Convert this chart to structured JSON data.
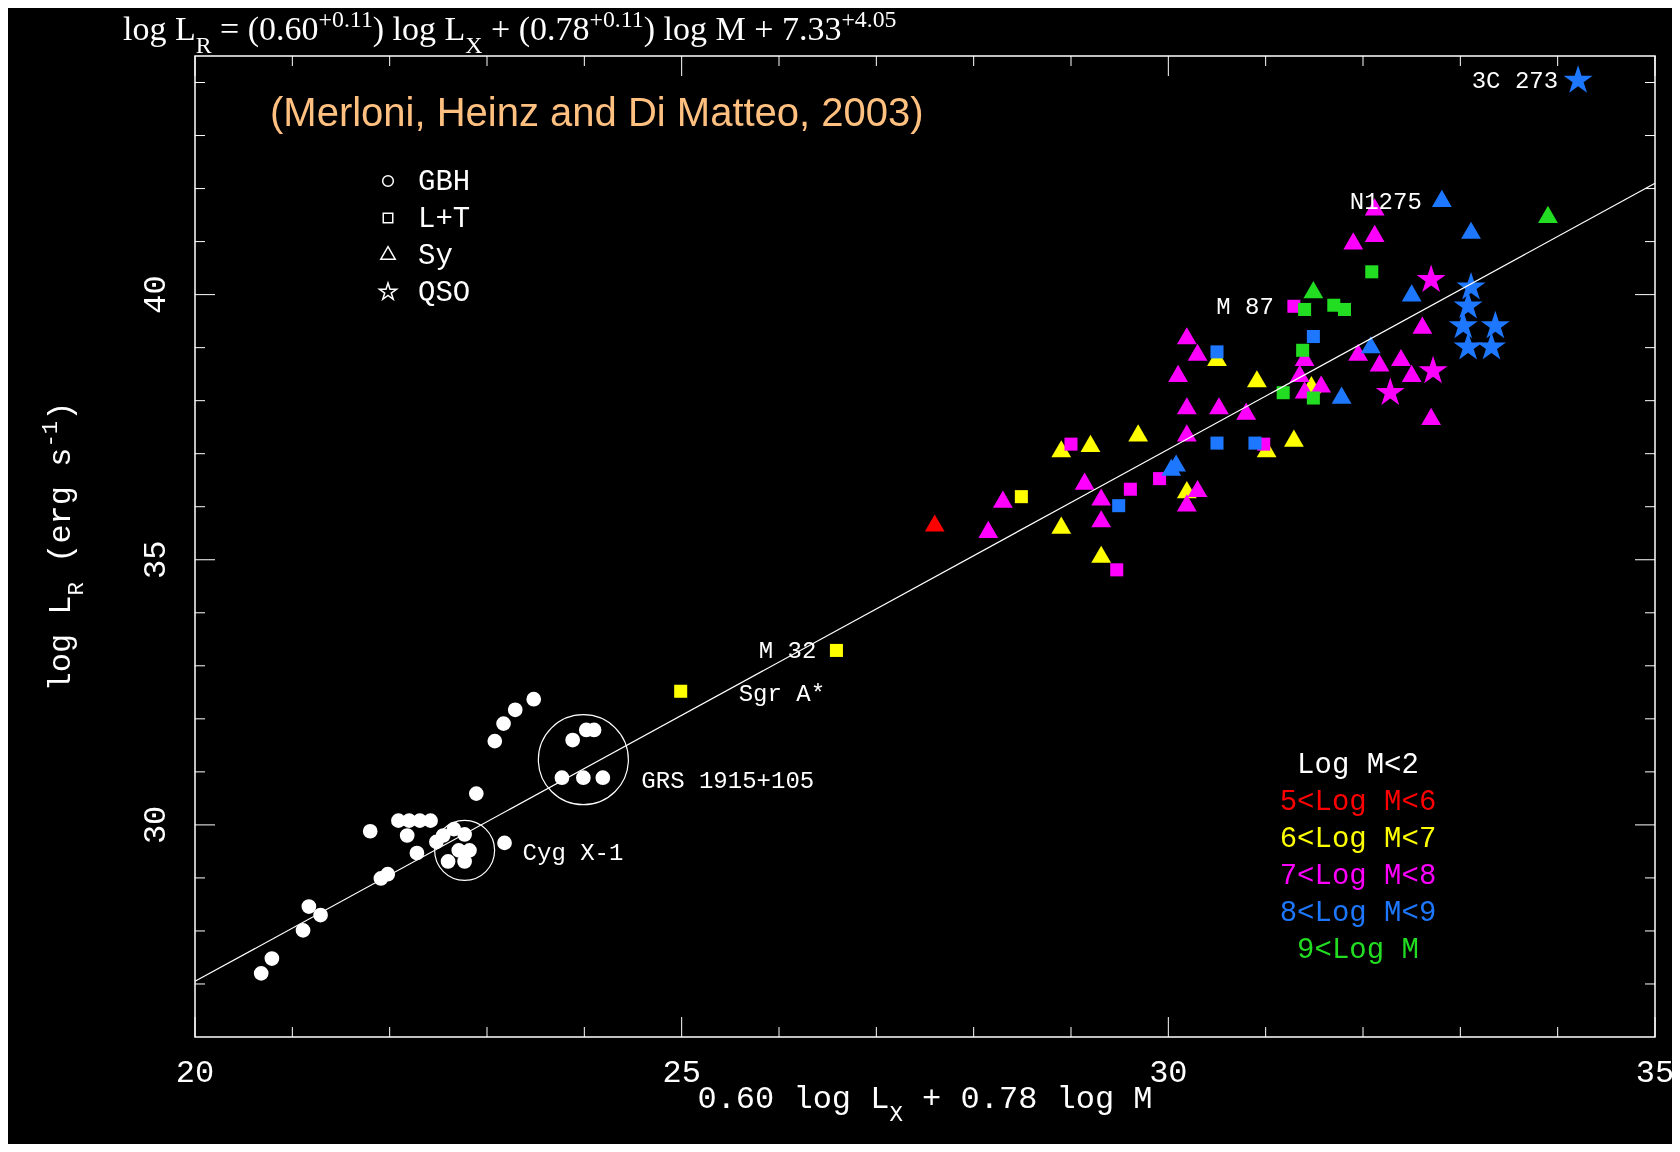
{
  "chart_data": {
    "type": "scatter",
    "title": "log L$_{R}$ = (0.60$^{+0.11}$) log L$_{X}$ + (0.78$^{+0.11}$) log M + 7.33$^{+4.05}$",
    "xlabel": "0.60 log L$_{X}$ + 0.78 log M",
    "ylabel": "log L$_{R}$ (erg s$^{-1}$)",
    "xlim": [
      20,
      35
    ],
    "ylim": [
      26,
      44.5
    ],
    "xticks": [
      20,
      {
        "value": 21,
        "label": null
      },
      {
        "value": 22,
        "label": null
      },
      {
        "value": 23,
        "label": null
      },
      {
        "value": 24,
        "label": null
      },
      25,
      {
        "value": 26,
        "label": null
      },
      {
        "value": 27,
        "label": null
      },
      {
        "value": 28,
        "label": null
      },
      {
        "value": 29,
        "label": null
      },
      30,
      {
        "value": 31,
        "label": null
      },
      {
        "value": 32,
        "label": null
      },
      {
        "value": 33,
        "label": null
      },
      {
        "value": 34,
        "label": null
      },
      35
    ],
    "yticks": [
      {
        "value": 27,
        "label": null
      },
      {
        "value": 28,
        "label": null
      },
      {
        "value": 29,
        "label": null
      },
      30,
      {
        "value": 31,
        "label": null
      },
      {
        "value": 32,
        "label": null
      },
      {
        "value": 33,
        "label": null
      },
      {
        "value": 34,
        "label": null
      },
      35,
      {
        "value": 36,
        "label": null
      },
      {
        "value": 37,
        "label": null
      },
      {
        "value": 38,
        "label": null
      },
      {
        "value": 39,
        "label": null
      },
      40,
      {
        "value": 41,
        "label": null
      },
      {
        "value": 42,
        "label": null
      },
      {
        "value": 43,
        "label": null
      },
      {
        "value": 44,
        "label": null
      }
    ],
    "legend": "bottom right",
    "series": [
      {
        "name": "Log M<2",
        "color": "#ffffff",
        "marker": "circle",
        "x": [
          20.68,
          20.79,
          21.11,
          21.17,
          21.29,
          21.8,
          21.91,
          21.98,
          22.09,
          22.2,
          22.31,
          22.42,
          22.18,
          22.28,
          22.48,
          22.55,
          22.66,
          22.77,
          22.71,
          22.82,
          22.6,
          22.77,
          22.89,
          23.18,
          23.08,
          23.17,
          23.29,
          23.48,
          23.77,
          23.99,
          24.19,
          23.88,
          24.02,
          24.1
        ],
        "values": [
          27.2,
          27.48,
          28.01,
          28.46,
          28.3,
          29.88,
          28.99,
          29.07,
          30.08,
          30.08,
          30.08,
          30.08,
          29.8,
          29.47,
          29.68,
          29.8,
          29.92,
          29.82,
          29.52,
          29.52,
          29.31,
          29.31,
          30.59,
          29.66,
          31.58,
          31.91,
          32.17,
          32.37,
          30.89,
          30.89,
          30.89,
          31.6,
          31.79,
          31.79
        ]
      },
      {
        "name": "5<Log M<6",
        "color": "#ff0000",
        "marker": "triangle",
        "x": [
          27.6
        ],
        "values": [
          35.64
        ]
      },
      {
        "name": "6<Log M<7",
        "color": "#ffff00",
        "marker": "triangle",
        "x": [
          28.9,
          28.9,
          29.2,
          29.69,
          29.31,
          30.19,
          30.5,
          30.91,
          31.01,
          31.29,
          31.47
        ],
        "values": [
          35.6,
          37.04,
          37.14,
          37.34,
          35.05,
          36.27,
          38.76,
          38.36,
          37.04,
          37.24,
          38.25
        ]
      },
      {
        "color": "#ffff00",
        "marker": "square",
        "x": [
          24.99,
          26.59,
          28.49
        ],
        "values": [
          32.52,
          33.29,
          36.19
        ]
      },
      {
        "name": "7<Log M<8",
        "color": "#ff00ff",
        "marker": "triangle",
        "x": [
          30.19,
          30.3,
          30.1,
          30.19,
          30.19,
          30.3,
          30.19,
          30.8,
          30.52,
          31.4,
          31.35,
          31.57,
          31.4,
          31.95,
          32.12,
          32.12,
          32.17,
          32.39,
          32.5,
          32.61,
          29.31,
          29.31,
          28.15,
          28.3,
          29.14,
          31.9,
          32.7
        ],
        "values": [
          39.17,
          38.86,
          38.46,
          37.85,
          36.02,
          36.29,
          37.34,
          37.75,
          37.85,
          38.76,
          38.46,
          38.26,
          38.15,
          38.86,
          41.6,
          41.1,
          38.66,
          38.76,
          38.46,
          39.37,
          36.13,
          35.72,
          35.52,
          36.09,
          36.43,
          40.96,
          37.65
        ]
      },
      {
        "color": "#ff00ff",
        "marker": "square",
        "x": [
          29.0,
          29.47,
          29.61,
          29.91,
          30.98,
          31.29
        ],
        "values": [
          37.18,
          34.81,
          36.33,
          36.53,
          37.18,
          39.78
        ]
      },
      {
        "color": "#ff00ff",
        "marker": "star",
        "x": [
          32.7,
          32.72,
          32.28
        ],
        "values": [
          40.28,
          38.56,
          38.15
        ]
      },
      {
        "name": "8<Log M<9",
        "color": "#1e78ff",
        "marker": "triangle",
        "x": [
          32.81,
          33.11,
          32.5,
          32.08,
          31.78,
          30.08,
          30.03
        ],
        "values": [
          41.76,
          41.16,
          39.98,
          39.0,
          38.05,
          36.77,
          36.69
        ]
      },
      {
        "color": "#1e78ff",
        "marker": "square",
        "x": [
          30.5,
          30.5,
          30.89,
          29.49,
          31.49
        ],
        "values": [
          38.92,
          37.2,
          37.2,
          36.02,
          39.21
        ]
      },
      {
        "color": "#1e78ff",
        "marker": "star",
        "x": [
          34.21,
          33.11,
          33.08,
          33.03,
          33.36,
          33.08,
          33.32
        ],
        "values": [
          44.04,
          40.14,
          39.78,
          39.41,
          39.41,
          39.01,
          39.01
        ]
      },
      {
        "name": "9<Log M",
        "color": "#22dd22",
        "marker": "triangle",
        "x": [
          33.9,
          31.49
        ],
        "values": [
          41.46,
          40.04
        ]
      },
      {
        "color": "#22dd22",
        "marker": "square",
        "x": [
          32.09,
          31.4,
          31.7,
          31.81,
          31.18,
          31.49,
          31.38
        ],
        "values": [
          40.43,
          39.72,
          39.8,
          39.72,
          38.15,
          38.05,
          38.95
        ]
      },
      {
        "type": "line",
        "color": "#ffffff",
        "x": [
          20,
          35
        ],
        "values": [
          27.05,
          42.1
        ]
      }
    ],
    "annotations": [
      "(Merloni, Heinz and Di Matteo, 2003)",
      "GBH",
      "L+T",
      "Sy",
      "QSO",
      {
        "text": "3C 273",
        "x": 34.21,
        "y": 44.04
      },
      {
        "text": "N1275",
        "x": 32.81,
        "y": 41.76
      },
      {
        "text": "M 87",
        "x": 31.29,
        "y": 39.78
      },
      {
        "text": "M 32",
        "x": 26.59,
        "y": 33.29
      },
      {
        "text": "Sgr A*",
        "x": 24.99,
        "y": 32.52
      },
      {
        "text": "GRS 1915+105",
        "x": 23.99,
        "y": 30.89
      },
      {
        "text": "Cyg X-1",
        "x": 22.77,
        "y": 29.52
      }
    ]
  }
}
